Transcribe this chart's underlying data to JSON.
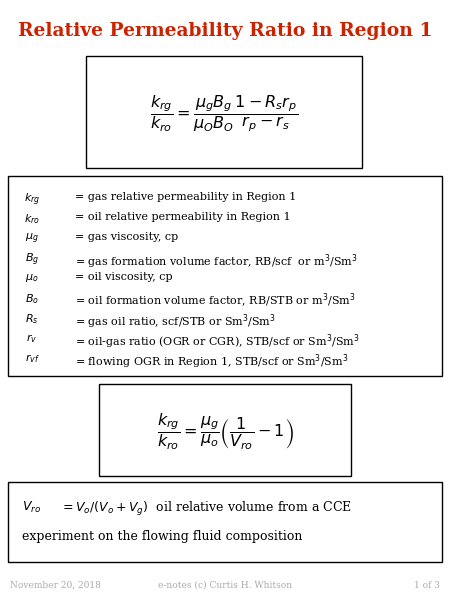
{
  "title": "Relative Permeability Ratio in Region 1",
  "title_color": "#CC2200",
  "title_fontsize": 13.5,
  "bg_color": "#FFFFFF",
  "footer_left": "November 20, 2018",
  "footer_center": "e-notes (c) Curtis H. Whitson",
  "footer_right": "1 of 3",
  "footer_color": "#AAAAAA",
  "footer_fontsize": 6.5,
  "main_eq": "$\\dfrac{k_{rg}}{k_{ro}} = \\dfrac{\\mu_g B_g}{\\mu_O B_O} \\dfrac{1 - R_s r_p}{r_p - r_s}$",
  "second_eq": "$\\dfrac{k_{rg}}{k_{ro}} = \\dfrac{\\mu_g}{\\mu_o} \\left( \\dfrac{1}{V_{ro}} - 1 \\right)$",
  "vro_line1_sym": "$V_{ro}$",
  "vro_line1_rest": "$= V_o/(V_o+V_g)$  oil relative volume from a CCE",
  "vro_line2": "experiment on the flowing fluid composition",
  "legend_lines": [
    [
      "$k_{rg}$",
      "= gas relative permeability in Region 1"
    ],
    [
      "$k_{ro}$",
      "= oil relative permeability in Region 1"
    ],
    [
      "$\\mu_g$",
      "= gas viscosity, cp"
    ],
    [
      "$B_g$",
      "= gas formation volume factor, RB/scf  or m$^3$/Sm$^3$"
    ],
    [
      "$\\mu_o$",
      "= oil viscosity, cp"
    ],
    [
      "$B_o$",
      "= oil formation volume factor, RB/STB or m$^3$/Sm$^3$"
    ],
    [
      "$R_s$",
      "= gas oil ratio, scf/STB or Sm$^3$/Sm$^3$"
    ],
    [
      "$r_v$",
      "= oil-gas ratio (OGR or CGR), STB/scf or Sm$^3$/Sm$^3$"
    ],
    [
      "$r_{vf}$",
      "= flowing OGR in Region 1, STB/scf or Sm$^3$/Sm$^3$"
    ]
  ],
  "main_eq_fontsize": 11.5,
  "second_eq_fontsize": 11.5,
  "legend_fontsize": 8.0,
  "vro_fontsize": 9.0
}
